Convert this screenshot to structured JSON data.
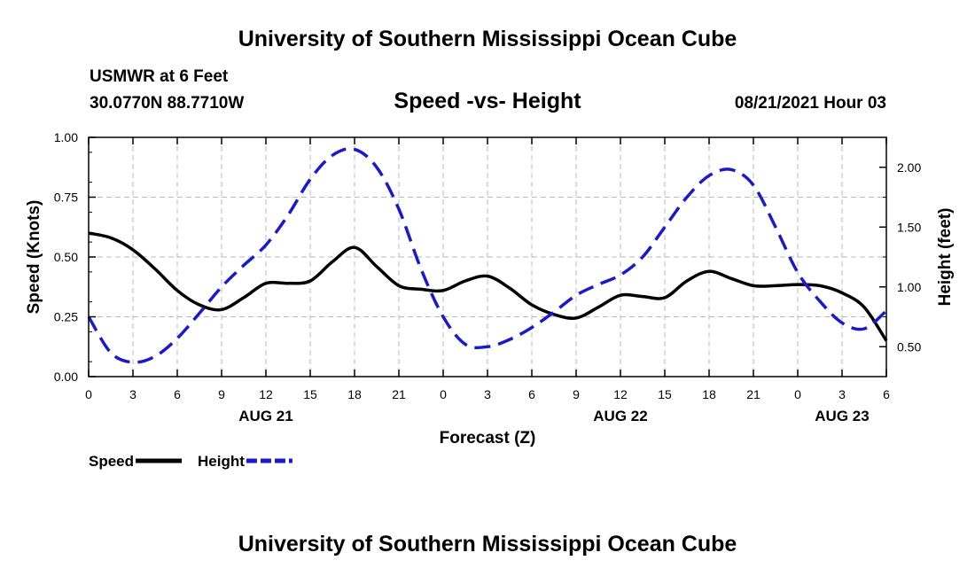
{
  "header": {
    "title": "University of Southern Mississippi Ocean Cube",
    "station": "USMWR at 6 Feet",
    "coords": "30.0770N  88.7710W",
    "chart_title": "Speed -vs- Height",
    "datetime": "08/21/2021 Hour 03"
  },
  "footer": {
    "title": "University of Southern Mississippi Ocean Cube"
  },
  "colors": {
    "speed": "#000000",
    "height": "#1a1acc",
    "grid": "#bbbbbb"
  },
  "chart_data": {
    "type": "line",
    "title": "Speed -vs- Height",
    "xlabel": "Forecast (Z)",
    "ylabel": "Speed (Knots)",
    "y2label": "Height (feet)",
    "xlim": [
      0,
      54
    ],
    "ylim": [
      0,
      1
    ],
    "y2lim": [
      0.25,
      2.25
    ],
    "x_tick_labels": [
      "0",
      "3",
      "6",
      "9",
      "12",
      "15",
      "18",
      "21",
      "0",
      "3",
      "6",
      "9",
      "12",
      "15",
      "18",
      "21",
      "0",
      "3",
      "6"
    ],
    "y_ticks": [
      "0.00",
      "0.25",
      "0.50",
      "0.75",
      "1.00"
    ],
    "y2_ticks": [
      "0.50",
      "1.00",
      "1.50",
      "2.00"
    ],
    "date_labels": [
      {
        "label": "AUG 21",
        "x": 12
      },
      {
        "label": "AUG 22",
        "x": 36
      },
      {
        "label": "AUG 23",
        "x": 51
      }
    ],
    "legend": [
      {
        "name": "Speed",
        "style": "solid"
      },
      {
        "name": "Height",
        "style": "dashed"
      }
    ],
    "series": [
      {
        "name": "Speed",
        "axis": "left",
        "style": "solid",
        "x": [
          0,
          1.5,
          3,
          4.5,
          6,
          7.5,
          9,
          10.5,
          12,
          13.5,
          15,
          16.5,
          18,
          19.5,
          21,
          22.5,
          24,
          25.5,
          27,
          28.5,
          30,
          31.5,
          33,
          34.5,
          36,
          37.5,
          39,
          40.5,
          42,
          43.5,
          45,
          46.5,
          48,
          49.5,
          51,
          52.5,
          54
        ],
        "values": [
          0.6,
          0.58,
          0.53,
          0.45,
          0.36,
          0.3,
          0.28,
          0.33,
          0.39,
          0.39,
          0.4,
          0.48,
          0.54,
          0.46,
          0.38,
          0.365,
          0.36,
          0.4,
          0.42,
          0.37,
          0.3,
          0.26,
          0.245,
          0.29,
          0.34,
          0.335,
          0.33,
          0.4,
          0.44,
          0.41,
          0.38,
          0.38,
          0.385,
          0.38,
          0.35,
          0.29,
          0.15
        ]
      },
      {
        "name": "Height",
        "axis": "right",
        "style": "dashed",
        "x": [
          0,
          1.5,
          3,
          4.5,
          6,
          7.5,
          9,
          10.5,
          12,
          13.5,
          15,
          16.5,
          18,
          19.5,
          21,
          22.5,
          24,
          25.5,
          27,
          28.5,
          30,
          31.5,
          33,
          34.5,
          36,
          37.5,
          39,
          40.5,
          42,
          43.5,
          45,
          46.5,
          48,
          49.5,
          51,
          52.5,
          54
        ],
        "values": [
          0.75,
          0.45,
          0.37,
          0.42,
          0.57,
          0.78,
          1.0,
          1.18,
          1.35,
          1.6,
          1.9,
          2.1,
          2.15,
          2.0,
          1.65,
          1.15,
          0.75,
          0.52,
          0.5,
          0.56,
          0.66,
          0.79,
          0.93,
          1.02,
          1.1,
          1.25,
          1.5,
          1.75,
          1.93,
          1.98,
          1.85,
          1.5,
          1.12,
          0.88,
          0.7,
          0.65,
          0.8
        ]
      }
    ]
  }
}
